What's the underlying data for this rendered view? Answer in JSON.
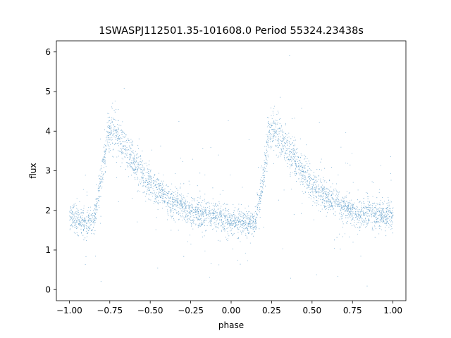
{
  "chart_data": {
    "type": "scatter",
    "title": "1SWASPJ112501.35-101608.0 Period 55324.23438s",
    "xlabel": "phase",
    "ylabel": "flux",
    "xlim": [
      -1.08,
      1.08
    ],
    "ylim": [
      -0.28,
      6.28
    ],
    "xticks": [
      -1.0,
      -0.75,
      -0.5,
      -0.25,
      0.0,
      0.25,
      0.5,
      0.75,
      1.0
    ],
    "xtick_labels": [
      "−1.00",
      "−0.75",
      "−0.50",
      "−0.25",
      "0.00",
      "0.25",
      "0.50",
      "0.75",
      "1.00"
    ],
    "yticks": [
      0,
      1,
      2,
      3,
      4,
      5,
      6
    ],
    "ytick_labels": [
      "0",
      "1",
      "2",
      "3",
      "4",
      "5",
      "6"
    ],
    "grid": false,
    "legend": false,
    "point_color": "#1f77b4",
    "profile": {
      "description_points": [
        {
          "phase": -1.0,
          "flux": 1.85
        },
        {
          "phase": -0.9,
          "flux": 1.65
        },
        {
          "phase": -0.85,
          "flux": 1.7
        },
        {
          "phase": -0.8,
          "flux": 2.9
        },
        {
          "phase": -0.76,
          "flux": 4.0
        },
        {
          "phase": -0.73,
          "flux": 4.05
        },
        {
          "phase": -0.6,
          "flux": 3.2
        },
        {
          "phase": -0.5,
          "flux": 2.65
        },
        {
          "phase": -0.4,
          "flux": 2.3
        },
        {
          "phase": -0.25,
          "flux": 1.95
        },
        {
          "phase": -0.1,
          "flux": 1.85
        },
        {
          "phase": 0.1,
          "flux": 1.65
        },
        {
          "phase": 0.15,
          "flux": 1.7
        },
        {
          "phase": 0.2,
          "flux": 2.9
        },
        {
          "phase": 0.24,
          "flux": 4.0
        },
        {
          "phase": 0.27,
          "flux": 4.05
        },
        {
          "phase": 0.4,
          "flux": 3.2
        },
        {
          "phase": 0.5,
          "flux": 2.65
        },
        {
          "phase": 0.6,
          "flux": 2.3
        },
        {
          "phase": 0.75,
          "flux": 1.95
        },
        {
          "phase": 1.0,
          "flux": 1.85
        }
      ]
    }
  }
}
